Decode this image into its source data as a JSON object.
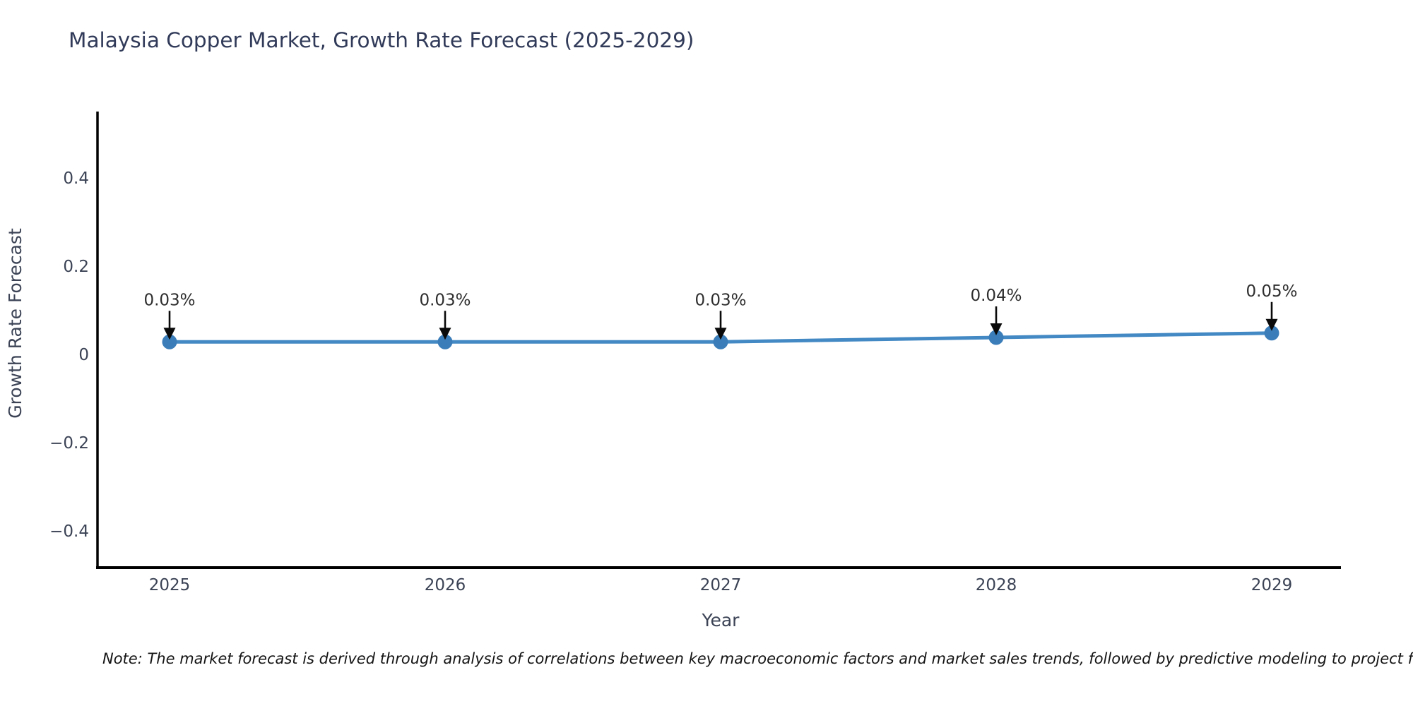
{
  "figure": {
    "note": "Note: The market forecast is derived through analysis of correlations between key macroeconomic factors and market sales trends, followed by predictive modeling to project future sa"
  },
  "chart_data": {
    "type": "line",
    "title": "Malaysia Copper Market, Growth Rate Forecast (2025-2029)",
    "xlabel": "Year",
    "ylabel": "Growth Rate Forecast",
    "categories": [
      "2025",
      "2026",
      "2027",
      "2028",
      "2029"
    ],
    "values": [
      0.03,
      0.03,
      0.03,
      0.04,
      0.05
    ],
    "point_labels": [
      "0.03%",
      "0.03%",
      "0.03%",
      "0.04%",
      "0.05%"
    ],
    "unit": "%",
    "ylim": [
      -0.48,
      0.55
    ],
    "yticks": [
      0.4,
      0.2,
      0,
      -0.2,
      -0.4
    ],
    "ytick_labels": [
      "0.4",
      "0.2",
      "0",
      "−0.2",
      "−0.4"
    ],
    "grid": false,
    "legend": "none",
    "annotation_style": "down-arrow",
    "colors": {
      "line": "#4389c4",
      "marker": "#3a7db9",
      "axis": "#000000",
      "tick_text": "#3b4355",
      "title_text": "#313b59",
      "annotation_text": "#2e2e2e",
      "arrow": "#0a0a0a",
      "note_text": "#141414",
      "background": "#ffffff"
    }
  }
}
